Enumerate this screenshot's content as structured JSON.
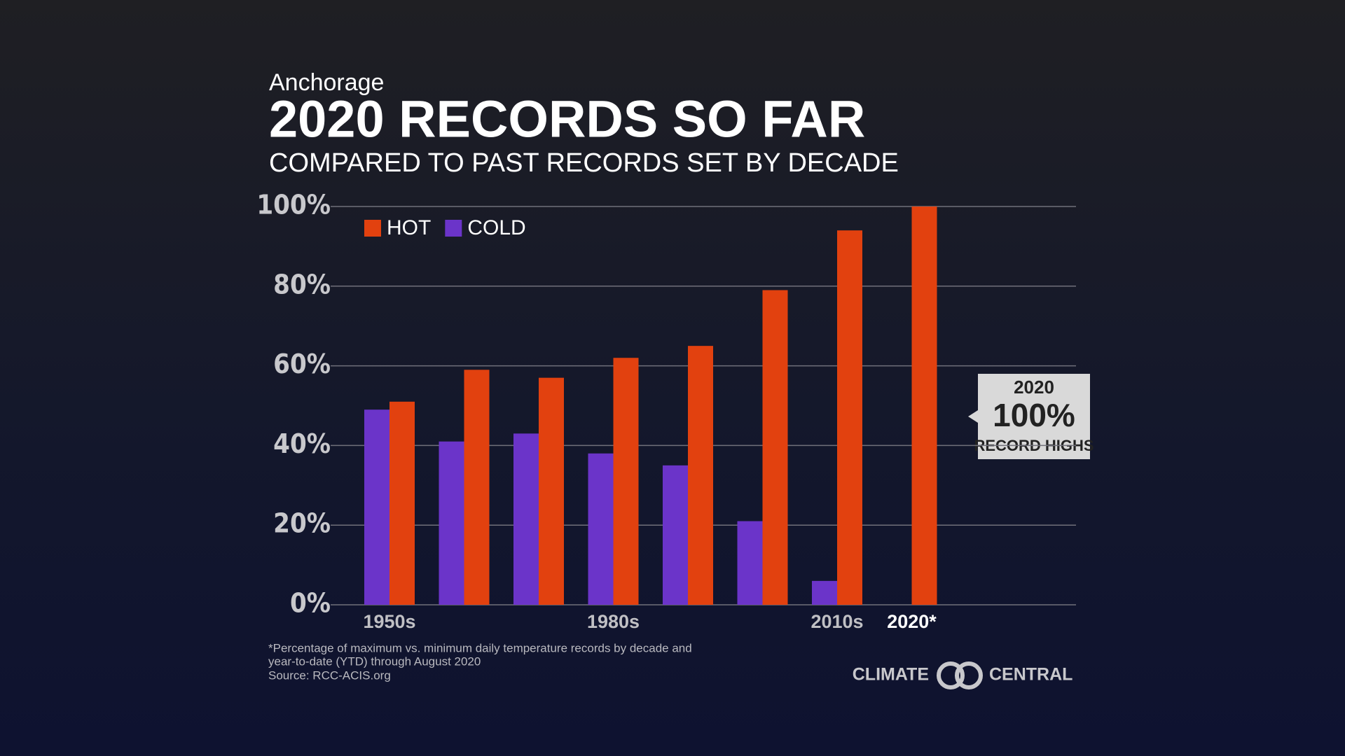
{
  "chart_data": {
    "type": "bar",
    "kicker": "Anchorage",
    "title": "2020 RECORDS SO FAR",
    "subtitle": "COMPARED TO PAST RECORDS SET BY DECADE",
    "categories": [
      "1950s",
      null,
      null,
      "1980s",
      null,
      null,
      "2010s",
      "2020*"
    ],
    "series": [
      {
        "name": "HOT",
        "color": "#e2410f",
        "values": [
          51,
          59,
          57,
          62,
          65,
          79,
          94,
          100
        ]
      },
      {
        "name": "COLD",
        "color": "#6b34c9",
        "values": [
          49,
          41,
          43,
          38,
          35,
          21,
          6,
          0
        ]
      }
    ],
    "ylim": [
      0,
      100
    ],
    "yticks": [
      {
        "value": 0,
        "label": "0%"
      },
      {
        "value": 20,
        "label": "20%"
      },
      {
        "value": 40,
        "label": "40%"
      },
      {
        "value": 60,
        "label": "60%"
      },
      {
        "value": 80,
        "label": "80%"
      },
      {
        "value": 100,
        "label": "100%"
      }
    ],
    "grid": true,
    "legend": "top-left",
    "annotation": {
      "year": "2020",
      "value": "100%",
      "text": "RECORD HIGHS"
    },
    "footnote": [
      "*Percentage of maximum vs. minimum daily temperature records by decade and",
      "year-to-date (YTD) through August 2020",
      "Source: RCC-ACIS.org"
    ],
    "logo": [
      "CLIMATE",
      "CENTRAL"
    ]
  }
}
